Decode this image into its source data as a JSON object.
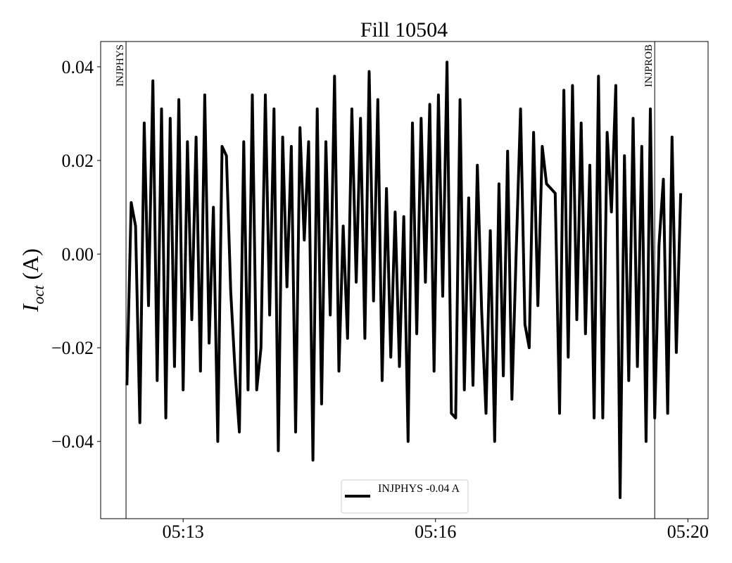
{
  "chart_data": {
    "type": "line",
    "title": "Fill 10504",
    "y_label": {
      "main": "I",
      "sub": "oct",
      "rest": " (A)"
    },
    "xlim": [
      11.856,
      20.28
    ],
    "ylim": [
      -0.0565,
      0.0454
    ],
    "xticks": [
      {
        "value": 13,
        "label": "05:13"
      },
      {
        "value": 16.5,
        "label": "05:16"
      },
      {
        "value": 20,
        "label": "05:20"
      }
    ],
    "yticks": [
      {
        "value": -0.04,
        "label": "−0.04"
      },
      {
        "value": -0.02,
        "label": "−0.02"
      },
      {
        "value": 0,
        "label": "0.00"
      },
      0.02,
      0.04
    ],
    "vlines": [
      {
        "x": 12.208,
        "label": "INJPHYS"
      },
      {
        "x": 19.54,
        "label": "INJPROB"
      }
    ],
    "legend": "lower center",
    "series": [
      {
        "name": "INJPHYS -0.04 A",
        "color": "#000000",
        "x": [
          12.22,
          12.28,
          12.34,
          12.4,
          12.46,
          12.52,
          12.58,
          12.64,
          12.7,
          12.76,
          12.82,
          12.88,
          12.94,
          13.0,
          13.06,
          13.12,
          13.18,
          13.24,
          13.3,
          13.36,
          13.42,
          13.48,
          13.54,
          13.6,
          13.66,
          13.72,
          13.78,
          13.84,
          13.9,
          13.96,
          14.02,
          14.08,
          14.14,
          14.2,
          14.26,
          14.32,
          14.38,
          14.44,
          14.5,
          14.56,
          14.62,
          14.68,
          14.74,
          14.8,
          14.86,
          14.92,
          14.98,
          15.04,
          15.1,
          15.16,
          15.22,
          15.28,
          15.34,
          15.4,
          15.46,
          15.52,
          15.58,
          15.64,
          15.7,
          15.76,
          15.82,
          15.88,
          15.94,
          16.0,
          16.06,
          16.12,
          16.18,
          16.24,
          16.3,
          16.36,
          16.42,
          16.48,
          16.54,
          16.6,
          16.66,
          16.72,
          16.78,
          16.84,
          16.9,
          16.96,
          17.02,
          17.08,
          17.14,
          17.2,
          17.26,
          17.32,
          17.38,
          17.44,
          17.5,
          17.56,
          17.62,
          17.68,
          17.74,
          17.8,
          17.86,
          17.92,
          17.98,
          18.04,
          18.1,
          18.16,
          18.22,
          18.28,
          18.34,
          18.4,
          18.46,
          18.52,
          18.58,
          18.64,
          18.7,
          18.76,
          18.82,
          18.88,
          18.94,
          19.0,
          19.06,
          19.12,
          19.18,
          19.24,
          19.3,
          19.36,
          19.42,
          19.48,
          19.54,
          19.6,
          19.66,
          19.72,
          19.78,
          19.84,
          19.9
        ],
        "values": [
          -0.028,
          0.011,
          0.006,
          -0.036,
          0.028,
          -0.011,
          0.037,
          -0.027,
          0.031,
          -0.035,
          0.029,
          -0.024,
          0.033,
          -0.029,
          0.024,
          -0.014,
          0.025,
          -0.025,
          0.034,
          -0.019,
          0.01,
          -0.04,
          0.023,
          0.021,
          -0.008,
          -0.025,
          -0.038,
          0.024,
          -0.029,
          0.034,
          -0.029,
          -0.02,
          0.034,
          -0.013,
          0.031,
          -0.042,
          0.025,
          -0.007,
          0.023,
          -0.038,
          0.027,
          0.003,
          0.024,
          -0.044,
          0.031,
          -0.032,
          0.024,
          -0.013,
          0.038,
          -0.025,
          0.006,
          -0.018,
          0.031,
          -0.006,
          0.029,
          -0.018,
          0.039,
          -0.01,
          0.033,
          -0.027,
          0.014,
          -0.022,
          0.009,
          -0.024,
          0.008,
          -0.04,
          0.028,
          -0.017,
          0.029,
          -0.006,
          0.032,
          -0.025,
          0.034,
          -0.009,
          0.041,
          -0.034,
          -0.035,
          0.033,
          -0.029,
          0.012,
          -0.028,
          0.019,
          -0.012,
          -0.034,
          0.005,
          -0.04,
          0.015,
          -0.026,
          0.022,
          -0.031,
          0.001,
          0.031,
          -0.015,
          -0.02,
          0.026,
          -0.011,
          0.023,
          0.015,
          0.014,
          0.013,
          -0.034,
          0.035,
          -0.022,
          0.036,
          -0.014,
          0.028,
          -0.017,
          0.019,
          -0.035,
          0.038,
          -0.035,
          0.026,
          0.009,
          0.036,
          -0.052,
          0.021,
          -0.027,
          0.029,
          -0.024,
          0.023,
          -0.04,
          0.031,
          -0.035,
          0.002,
          0.016,
          -0.034,
          0.025,
          -0.021,
          0.013
        ]
      }
    ]
  }
}
